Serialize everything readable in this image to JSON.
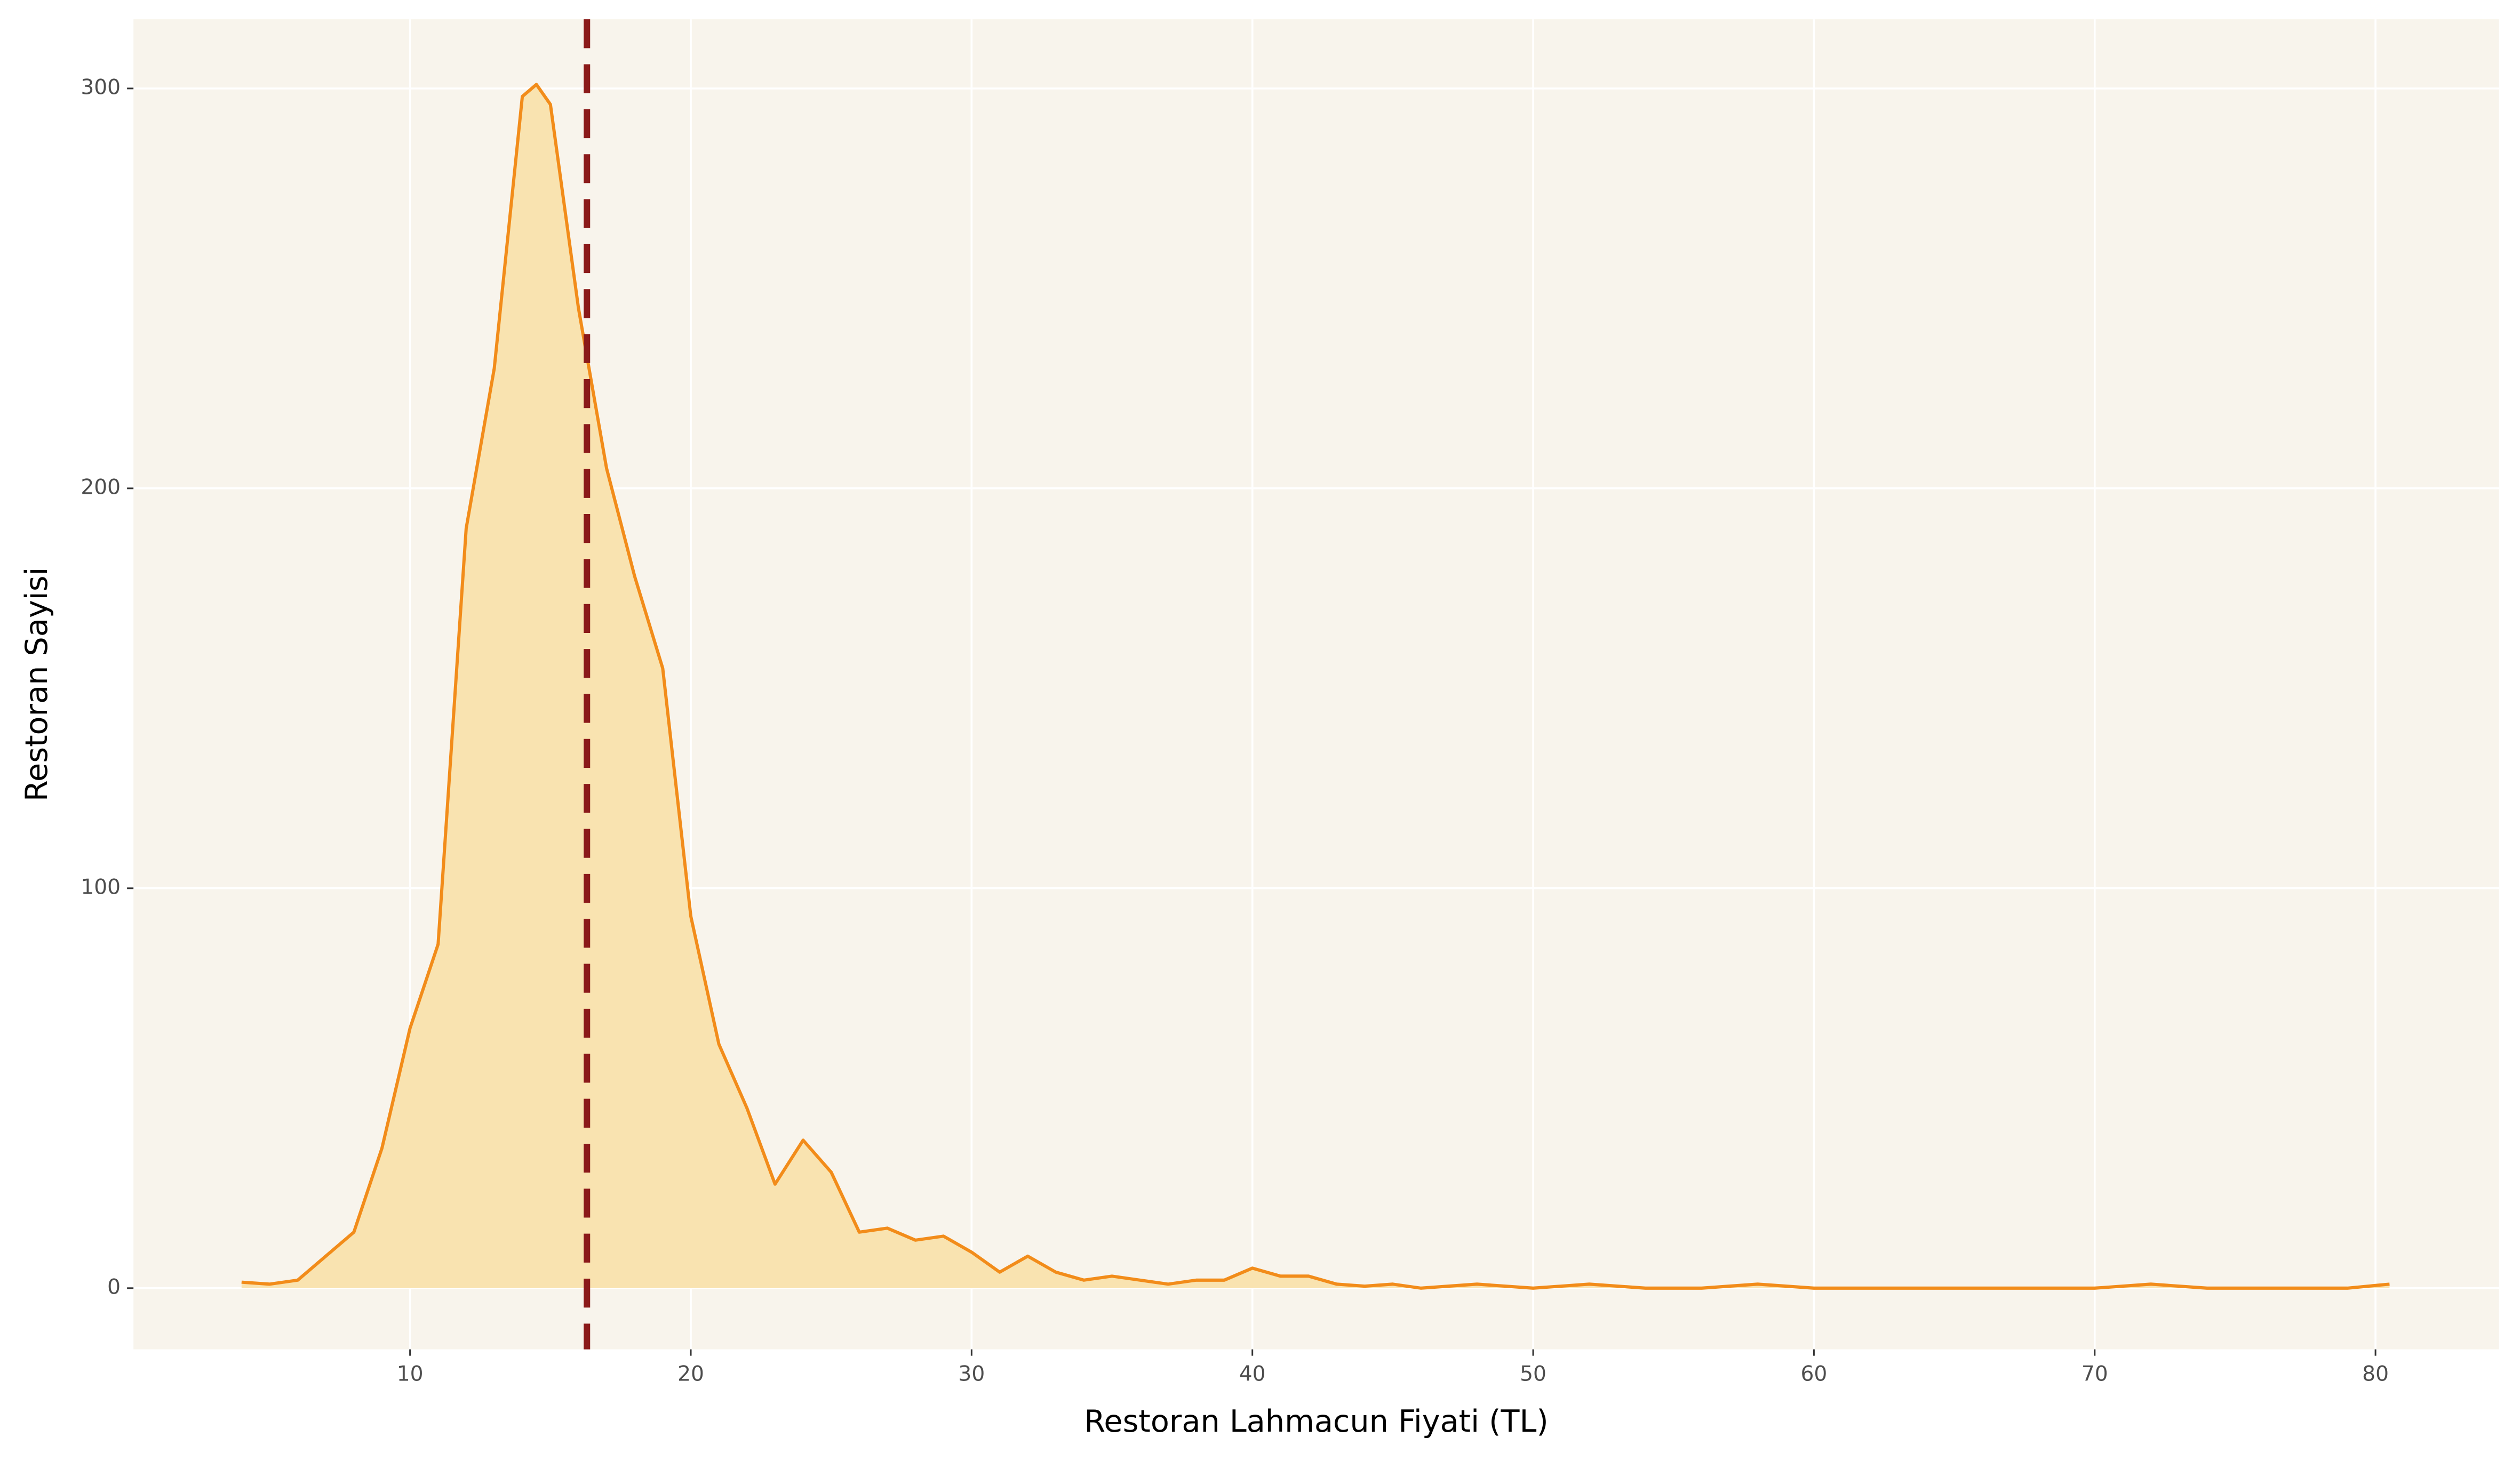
{
  "chart_data": {
    "type": "area",
    "x_label": "Restoran Lahmacun Fiyati (TL)",
    "y_label": "Restoran Sayisi",
    "x": [
      4,
      5,
      6,
      7,
      8,
      9,
      10,
      11,
      12,
      13,
      14,
      14.5,
      15,
      16,
      17,
      18,
      19,
      20,
      21,
      22,
      23,
      24,
      25,
      26,
      27,
      28,
      29,
      30,
      31,
      32,
      33,
      34,
      35,
      36,
      37,
      38,
      39,
      40,
      41,
      42,
      43,
      44,
      45,
      46,
      48,
      50,
      52,
      54,
      56,
      58,
      60,
      70,
      72,
      74,
      79,
      80.5
    ],
    "values": [
      1.5,
      1,
      2,
      8,
      14,
      35,
      65,
      86,
      190,
      230,
      298,
      301,
      296,
      245,
      205,
      178,
      155,
      93,
      61,
      45,
      26,
      37,
      29,
      14,
      15,
      12,
      13,
      9,
      4,
      8,
      4,
      2,
      3,
      2,
      1,
      2,
      2,
      5,
      3,
      3,
      1,
      0.5,
      1,
      0,
      1,
      0,
      1,
      0,
      0,
      1,
      0,
      0,
      1,
      0,
      0,
      1
    ],
    "color": "#f28c1a",
    "fill": "#f9e3b0",
    "vline": 16.3,
    "vline_color": "#8b1a1a",
    "xlim": [
      0.15,
      84.4
    ],
    "ylim": [
      -15.3,
      317.3
    ],
    "xticks": [
      10,
      20,
      30,
      40,
      50,
      60,
      70,
      80
    ],
    "yticks": [
      0,
      100,
      200,
      300
    ],
    "grid": true
  }
}
